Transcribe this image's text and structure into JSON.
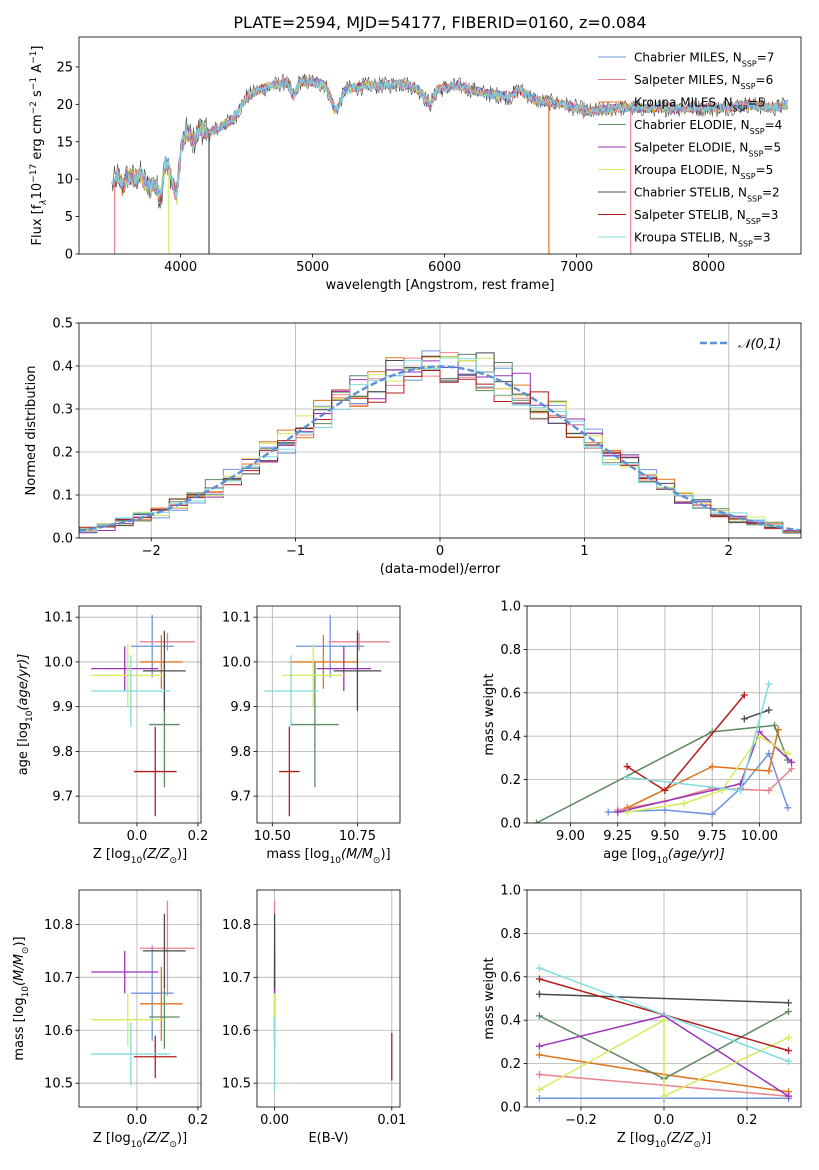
{
  "title": "PLATE=2594, MJD=54177, FIBERID=0160, z=0.084",
  "colors": {
    "Chabrier MILES": "#6f95e0",
    "Salpeter MILES": "#e9828f",
    "Kroupa MILES": "#e0731c",
    "Chabrier ELODIE": "#5c8a62",
    "Salpeter ELODIE": "#9b33b9",
    "Kroupa ELODIE": "#d4ec5c",
    "Chabrier STELIB": "#4a4a4a",
    "Salpeter STELIB": "#b41c1c",
    "Kroupa STELIB": "#80dbe0"
  },
  "chart_data": [
    {
      "id": "spectrum",
      "type": "line",
      "xlabel": "wavelength [Angstrom, rest frame]",
      "ylabel": "Flux [f",
      "ylabel_parts": {
        "a": "Flux [f",
        "b": "λ",
        "c": "10",
        "d": "−17",
        "e": " erg cm",
        "f": "−2",
        "g": " s",
        "h": "−1",
        "i": " A",
        "j": "−1",
        "k": "]"
      },
      "xlim": [
        3230,
        8700
      ],
      "ylim": [
        0,
        29
      ],
      "xticks": [
        4000,
        5000,
        6000,
        7000,
        8000
      ],
      "yticks": [
        0,
        5,
        10,
        15,
        20,
        25
      ],
      "grid": false,
      "legend_position": "right",
      "continuum": [
        [
          3480,
          9
        ],
        [
          3520,
          10.5
        ],
        [
          3560,
          9
        ],
        [
          3600,
          10.5
        ],
        [
          3650,
          10
        ],
        [
          3700,
          10.5
        ],
        [
          3750,
          9
        ],
        [
          3800,
          9.5
        ],
        [
          3850,
          7.5
        ],
        [
          3880,
          12
        ],
        [
          3920,
          11
        ],
        [
          3970,
          7.5
        ],
        [
          4000,
          14
        ],
        [
          4050,
          16.5
        ],
        [
          4100,
          15
        ],
        [
          4150,
          17
        ],
        [
          4200,
          16
        ],
        [
          4300,
          17
        ],
        [
          4400,
          18
        ],
        [
          4500,
          21
        ],
        [
          4600,
          22
        ],
        [
          4700,
          22.5
        ],
        [
          4800,
          23
        ],
        [
          4860,
          21
        ],
        [
          4900,
          23
        ],
        [
          5000,
          23
        ],
        [
          5100,
          22.5
        ],
        [
          5175,
          19
        ],
        [
          5250,
          22
        ],
        [
          5400,
          22.5
        ],
        [
          5500,
          22.5
        ],
        [
          5700,
          22.8
        ],
        [
          5800,
          22
        ],
        [
          5890,
          20
        ],
        [
          5950,
          22
        ],
        [
          6100,
          22.5
        ],
        [
          6300,
          21.5
        ],
        [
          6500,
          21
        ],
        [
          6560,
          22
        ],
        [
          6700,
          20.5
        ],
        [
          6900,
          20
        ],
        [
          7100,
          19
        ],
        [
          7300,
          19.5
        ],
        [
          7500,
          19.5
        ],
        [
          7700,
          19.5
        ],
        [
          7900,
          19.5
        ],
        [
          8100,
          19.5
        ],
        [
          8300,
          20
        ],
        [
          8500,
          19.5
        ],
        [
          8600,
          20
        ]
      ],
      "spikes": [
        {
          "series": "Kroupa ELODIE",
          "x": 3910
        },
        {
          "series": "Chabrier STELIB",
          "x": 4215
        },
        {
          "series": "Kroupa MILES",
          "x": 6790
        },
        {
          "series": "Salpeter MILES",
          "x": 7410
        },
        {
          "series": "Salpeter MILES",
          "x": 3500
        }
      ],
      "series": [
        {
          "name": "Chabrier MILES",
          "label": "Chabrier MILES, N",
          "sub": "SSP",
          "n": "=7"
        },
        {
          "name": "Salpeter MILES",
          "label": "Salpeter MILES, N",
          "sub": "SSP",
          "n": "=6"
        },
        {
          "name": "Kroupa MILES",
          "label": "Kroupa MILES, N",
          "sub": "SSP",
          "n": "=5"
        },
        {
          "name": "Chabrier ELODIE",
          "label": "Chabrier ELODIE, N",
          "sub": "SSP",
          "n": "=4"
        },
        {
          "name": "Salpeter ELODIE",
          "label": "Salpeter ELODIE, N",
          "sub": "SSP",
          "n": "=5"
        },
        {
          "name": "Kroupa ELODIE",
          "label": "Kroupa ELODIE, N",
          "sub": "SSP",
          "n": "=5"
        },
        {
          "name": "Chabrier STELIB",
          "label": "Chabrier STELIB, N",
          "sub": "SSP",
          "n": "=2"
        },
        {
          "name": "Salpeter STELIB",
          "label": "Salpeter STELIB, N",
          "sub": "SSP",
          "n": "=3"
        },
        {
          "name": "Kroupa STELIB",
          "label": "Kroupa STELIB, N",
          "sub": "SSP",
          "n": "=3"
        }
      ]
    },
    {
      "id": "residuals",
      "type": "histogram",
      "xlabel": "(data-model)/error",
      "ylabel": "Normed distribution",
      "xlim": [
        -2.5,
        2.5
      ],
      "ylim": [
        0,
        0.5
      ],
      "xticks": [
        -2,
        -1,
        0,
        1,
        2
      ],
      "yticks": [
        0.0,
        0.1,
        0.2,
        0.3,
        0.4,
        0.5
      ],
      "grid": true,
      "legend": "𝒩(0,1)",
      "legend_position": "top-right",
      "reference_curve": {
        "name": "𝒩(0,1)",
        "color": "#5b8fd6",
        "mean": 0,
        "sigma": 1
      }
    },
    {
      "id": "z-age",
      "type": "errorbar",
      "xlabel": "Z [log",
      "xlabel_parts": {
        "a": "Z [log",
        "b": "10",
        "c": "(Z/Z",
        "d": "⊙",
        "e": ")]"
      },
      "ylabel": "age  [log",
      "ylabel_parts": {
        "a": "age  [log",
        "b": "10",
        "c": "(age/yr)]"
      },
      "xlim": [
        -0.19,
        0.21
      ],
      "ylim": [
        9.64,
        10.125
      ],
      "xticks": [
        0.0,
        0.2
      ],
      "yticks": [
        9.7,
        9.8,
        9.9,
        10.0,
        10.1
      ],
      "grid": true,
      "points": [
        {
          "series": "Chabrier MILES",
          "x": 0.05,
          "xerr": 0.07,
          "y": 10.035,
          "yerr": 0.07
        },
        {
          "series": "Salpeter MILES",
          "x": 0.1,
          "xerr": 0.09,
          "y": 10.045,
          "yerr": 0.02
        },
        {
          "series": "Kroupa MILES",
          "x": 0.08,
          "xerr": 0.07,
          "y": 10.0,
          "yerr": 0.06
        },
        {
          "series": "Chabrier ELODIE",
          "x": 0.09,
          "xerr": 0.05,
          "y": 9.86,
          "yerr": 0.14
        },
        {
          "series": "Salpeter ELODIE",
          "x": -0.04,
          "xerr": 0.11,
          "y": 9.985,
          "yerr": 0.05
        },
        {
          "series": "Kroupa ELODIE",
          "x": -0.03,
          "xerr": 0.12,
          "y": 9.97,
          "yerr": 0.07
        },
        {
          "series": "Chabrier STELIB",
          "x": 0.09,
          "xerr": 0.07,
          "y": 9.98,
          "yerr": 0.09
        },
        {
          "series": "Salpeter STELIB",
          "x": 0.06,
          "xerr": 0.07,
          "y": 9.755,
          "yerr": 0.1
        },
        {
          "series": "Kroupa STELIB",
          "x": -0.02,
          "xerr": 0.13,
          "y": 9.935,
          "yerr": 0.08
        }
      ]
    },
    {
      "id": "mass-age",
      "type": "errorbar",
      "xlabel": "mass [log",
      "xlabel_parts": {
        "a": "mass [log",
        "b": "10",
        "c": "(M/M",
        "d": "⊙",
        "e": ")]"
      },
      "ylabel": "",
      "xlim": [
        10.455,
        10.875
      ],
      "ylim": [
        9.64,
        10.125
      ],
      "xticks": [
        10.5,
        10.75
      ],
      "yticks": [
        9.7,
        9.8,
        9.9,
        10.0,
        10.1
      ],
      "grid": true,
      "points": [
        {
          "series": "Chabrier MILES",
          "x": 10.67,
          "xerr": 0.1,
          "y": 10.035,
          "yerr": 0.07
        },
        {
          "series": "Salpeter MILES",
          "x": 10.755,
          "xerr": 0.09,
          "y": 10.045,
          "yerr": 0.02
        },
        {
          "series": "Kroupa MILES",
          "x": 10.65,
          "xerr": 0.1,
          "y": 10.0,
          "yerr": 0.06
        },
        {
          "series": "Chabrier ELODIE",
          "x": 10.625,
          "xerr": 0.07,
          "y": 9.86,
          "yerr": 0.14
        },
        {
          "series": "Salpeter ELODIE",
          "x": 10.71,
          "xerr": 0.08,
          "y": 9.985,
          "yerr": 0.05
        },
        {
          "series": "Kroupa ELODIE",
          "x": 10.62,
          "xerr": 0.09,
          "y": 9.97,
          "yerr": 0.07
        },
        {
          "series": "Chabrier STELIB",
          "x": 10.75,
          "xerr": 0.07,
          "y": 9.98,
          "yerr": 0.09
        },
        {
          "series": "Salpeter STELIB",
          "x": 10.55,
          "xerr": 0.03,
          "y": 9.755,
          "yerr": 0.1
        },
        {
          "series": "Kroupa STELIB",
          "x": 10.555,
          "xerr": 0.08,
          "y": 9.935,
          "yerr": 0.08
        }
      ]
    },
    {
      "id": "age-weight",
      "type": "line",
      "xlabel": "age  [log",
      "xlabel_parts": {
        "a": "age  [log",
        "b": "10",
        "c": "(age/yr)]"
      },
      "ylabel": "mass weight",
      "xlim": [
        8.77,
        10.22
      ],
      "ylim": [
        0,
        1.0
      ],
      "xticks": [
        9.0,
        9.25,
        9.5,
        9.75,
        10.0
      ],
      "yticks": [
        0.0,
        0.2,
        0.4,
        0.6,
        0.8,
        1.0
      ],
      "grid": true,
      "series": [
        {
          "name": "Chabrier MILES",
          "x": [
            9.2,
            9.5,
            9.75,
            9.9,
            10.05,
            10.15
          ],
          "y": [
            0.05,
            0.06,
            0.04,
            0.16,
            0.32,
            0.07
          ]
        },
        {
          "name": "Salpeter MILES",
          "x": [
            9.25,
            9.5,
            9.75,
            10.05,
            10.17
          ],
          "y": [
            0.06,
            0.1,
            0.16,
            0.15,
            0.25
          ]
        },
        {
          "name": "Kroupa MILES",
          "x": [
            9.3,
            9.75,
            10.05,
            10.1
          ],
          "y": [
            0.07,
            0.26,
            0.24,
            0.43
          ]
        },
        {
          "name": "Chabrier ELODIE",
          "x": [
            8.82,
            9.75,
            10.08,
            10.15
          ],
          "y": [
            0.0,
            0.42,
            0.45,
            0.29
          ]
        },
        {
          "name": "Salpeter ELODIE",
          "x": [
            9.25,
            9.9,
            10.0,
            10.17
          ],
          "y": [
            0.05,
            0.18,
            0.42,
            0.28
          ]
        },
        {
          "name": "Kroupa ELODIE",
          "x": [
            9.3,
            9.6,
            9.8,
            10.0,
            10.15
          ],
          "y": [
            0.05,
            0.09,
            0.15,
            0.4,
            0.32
          ]
        },
        {
          "name": "Chabrier STELIB",
          "x": [
            9.92,
            10.05
          ],
          "y": [
            0.48,
            0.52
          ]
        },
        {
          "name": "Salpeter STELIB",
          "x": [
            9.3,
            9.5,
            9.92
          ],
          "y": [
            0.26,
            0.15,
            0.59
          ]
        },
        {
          "name": "Kroupa STELIB",
          "x": [
            9.3,
            9.9,
            10.05
          ],
          "y": [
            0.21,
            0.15,
            0.64
          ]
        }
      ]
    },
    {
      "id": "z-mass",
      "type": "errorbar",
      "xlabel": "Z [log",
      "xlabel_parts": {
        "a": "Z [log",
        "b": "10",
        "c": "(Z/Z",
        "d": "⊙",
        "e": ")]"
      },
      "ylabel": "mass [log",
      "ylabel_parts": {
        "a": "mass [log",
        "b": "10",
        "c": "(M/M",
        "d": "⊙",
        "e": ")]"
      },
      "xlim": [
        -0.19,
        0.21
      ],
      "ylim": [
        10.455,
        10.865
      ],
      "xticks": [
        0.0,
        0.2
      ],
      "yticks": [
        10.5,
        10.6,
        10.7,
        10.8
      ],
      "grid": true,
      "points": [
        {
          "series": "Chabrier MILES",
          "x": 0.05,
          "xerr": 0.07,
          "y": 10.67,
          "yerr": 0.09
        },
        {
          "series": "Salpeter MILES",
          "x": 0.1,
          "xerr": 0.09,
          "y": 10.755,
          "yerr": 0.09
        },
        {
          "series": "Kroupa MILES",
          "x": 0.08,
          "xerr": 0.07,
          "y": 10.65,
          "yerr": 0.07
        },
        {
          "series": "Chabrier ELODIE",
          "x": 0.09,
          "xerr": 0.05,
          "y": 10.625,
          "yerr": 0.06
        },
        {
          "series": "Salpeter ELODIE",
          "x": -0.04,
          "xerr": 0.11,
          "y": 10.71,
          "yerr": 0.04
        },
        {
          "series": "Kroupa ELODIE",
          "x": -0.03,
          "xerr": 0.12,
          "y": 10.62,
          "yerr": 0.05
        },
        {
          "series": "Chabrier STELIB",
          "x": 0.09,
          "xerr": 0.07,
          "y": 10.75,
          "yerr": 0.07
        },
        {
          "series": "Salpeter STELIB",
          "x": 0.06,
          "xerr": 0.07,
          "y": 10.55,
          "yerr": 0.04
        },
        {
          "series": "Kroupa STELIB",
          "x": -0.02,
          "xerr": 0.13,
          "y": 10.555,
          "yerr": 0.06
        }
      ]
    },
    {
      "id": "ebv-mass",
      "type": "errorbar",
      "xlabel": "E(B-V)",
      "ylabel": "",
      "xlim": [
        -0.0015,
        0.0107
      ],
      "ylim": [
        10.455,
        10.865
      ],
      "xticks": [
        0.0,
        0.01
      ],
      "xtick_labels": [
        "0.00",
        "0.01"
      ],
      "yticks": [
        10.5,
        10.6,
        10.7,
        10.8
      ],
      "grid": true,
      "points": [
        {
          "series": "Chabrier MILES",
          "x": 0.0,
          "xerr": 0,
          "y": 10.67,
          "yerr": 0.09
        },
        {
          "series": "Salpeter MILES",
          "x": 0.0,
          "xerr": 0,
          "y": 10.755,
          "yerr": 0.09
        },
        {
          "series": "Kroupa MILES",
          "x": 0.0,
          "xerr": 0,
          "y": 10.65,
          "yerr": 0.07
        },
        {
          "series": "Chabrier ELODIE",
          "x": 0.0,
          "xerr": 0,
          "y": 10.625,
          "yerr": 0.06
        },
        {
          "series": "Salpeter ELODIE",
          "x": 0.0,
          "xerr": 0,
          "y": 10.71,
          "yerr": 0.04
        },
        {
          "series": "Kroupa ELODIE",
          "x": 0.0,
          "xerr": 0,
          "y": 10.62,
          "yerr": 0.05
        },
        {
          "series": "Chabrier STELIB",
          "x": 0.0,
          "xerr": 0,
          "y": 10.75,
          "yerr": 0.07
        },
        {
          "series": "Salpeter STELIB",
          "x": 0.01,
          "xerr": 0,
          "y": 10.55,
          "yerr": 0.045
        },
        {
          "series": "Kroupa STELIB",
          "x": 0.0,
          "xerr": 0,
          "y": 10.555,
          "yerr": 0.07
        }
      ]
    },
    {
      "id": "z-weight",
      "type": "line",
      "xlabel": "Z [log",
      "xlabel_parts": {
        "a": "Z [log",
        "b": "10",
        "c": "(Z/Z",
        "d": "⊙",
        "e": ")]"
      },
      "ylabel": "mass weight",
      "xlim": [
        -0.33,
        0.33
      ],
      "ylim": [
        0,
        1.0
      ],
      "xticks": [
        -0.2,
        0.0,
        0.2
      ],
      "yticks": [
        0.0,
        0.2,
        0.4,
        0.6,
        0.8,
        1.0
      ],
      "grid": true,
      "series": [
        {
          "name": "Chabrier MILES",
          "x": [
            -0.3,
            0.0,
            0.3
          ],
          "y": [
            0.04,
            0.04,
            0.04
          ]
        },
        {
          "name": "Salpeter MILES",
          "x": [
            -0.3,
            0.0,
            0.3
          ],
          "y": [
            0.15,
            0.1,
            0.05
          ]
        },
        {
          "name": "Kroupa MILES",
          "x": [
            -0.3,
            0.0,
            0.3
          ],
          "y": [
            0.24,
            0.15,
            0.07
          ]
        },
        {
          "name": "Chabrier ELODIE",
          "x": [
            -0.3,
            0.0,
            0.3
          ],
          "y": [
            0.42,
            0.13,
            0.44
          ]
        },
        {
          "name": "Salpeter ELODIE",
          "x": [
            -0.3,
            0.0,
            0.3
          ],
          "y": [
            0.28,
            0.42,
            0.05
          ]
        },
        {
          "name": "Kroupa ELODIE",
          "x": [
            -0.3,
            0.0,
            0.0,
            0.3
          ],
          "y": [
            0.08,
            0.4,
            0.05,
            0.32
          ]
        },
        {
          "name": "Chabrier STELIB",
          "x": [
            -0.3,
            0.3
          ],
          "y": [
            0.52,
            0.48
          ]
        },
        {
          "name": "Salpeter STELIB",
          "x": [
            -0.3,
            0.3
          ],
          "y": [
            0.59,
            0.26
          ]
        },
        {
          "name": "Kroupa STELIB",
          "x": [
            -0.3,
            0.3
          ],
          "y": [
            0.64,
            0.21
          ]
        }
      ]
    }
  ]
}
